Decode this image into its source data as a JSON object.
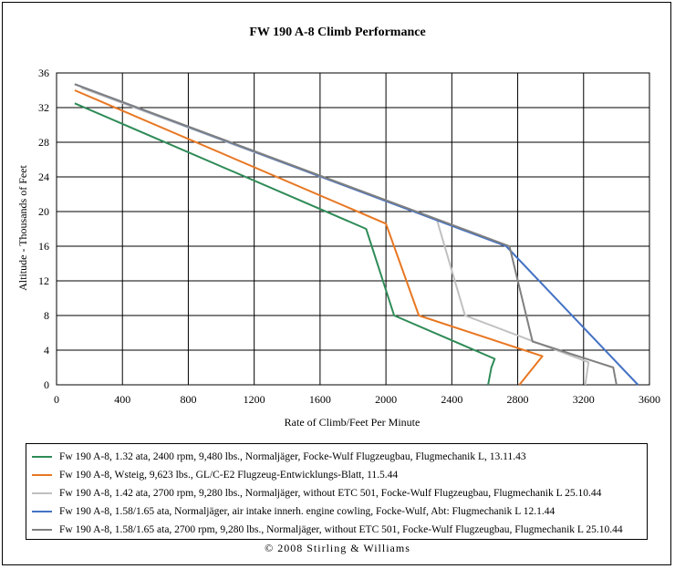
{
  "chart_data": {
    "type": "line",
    "title": "FW 190 A-8 Climb Performance",
    "xlabel": "Rate of Climb/Feet Per Minute",
    "ylabel": "Altitude - Thousands of Feet",
    "xlim": [
      0,
      3600
    ],
    "ylim": [
      0,
      36
    ],
    "xticks": [
      "0",
      "400",
      "800",
      "1200",
      "1600",
      "2000",
      "2400",
      "2800",
      "3200",
      "3600"
    ],
    "yticks": [
      "0",
      "4",
      "8",
      "12",
      "16",
      "20",
      "24",
      "28",
      "32",
      "36"
    ],
    "grid": true,
    "legend_position": "bottom",
    "series": [
      {
        "name": "Fw 190 A-8, 1.32 ata, 2400 rpm, 9,480 lbs., Normaljäger, Focke-Wulf Flugzeugbau, Flugmechanik L, 13.11.43",
        "color": "#2e8b57",
        "x": [
          2620,
          2640,
          2660,
          2050,
          1880,
          110
        ],
        "y": [
          0,
          2,
          3,
          8,
          18,
          32.5
        ]
      },
      {
        "name": "Fw 190 A-8, Wsteig, 9,623 lbs., GL/C-E2 Flugzeug-Entwicklungs-Blatt, 11.5.44",
        "color": "#e87722",
        "x": [
          2810,
          2950,
          2200,
          2000,
          110
        ],
        "y": [
          0,
          3.3,
          8,
          18.6,
          34
        ]
      },
      {
        "name": "Fw 190 A-8, 1.42 ata, 2700 rpm, 9,280 lbs., Normaljäger, without ETC 501, Focke-Wulf Flugzeugbau, Flugmechanik L 25.10.44",
        "color": "#c0c0c0",
        "x": [
          3210,
          3230,
          2480,
          2310,
          150
        ],
        "y": [
          0,
          2.6,
          8,
          19,
          34.3
        ]
      },
      {
        "name": "Fw 190 A-8, 1.58/1.65 ata, Normaljäger, air intake innerh. engine cowling, Focke-Wulf, Abt: Flugmechanik L 12.1.44",
        "color": "#4472c4",
        "x": [
          3530,
          2730,
          110
        ],
        "y": [
          0,
          16,
          34.7
        ]
      },
      {
        "name": "Fw 190 A-8, 1.58/1.65 ata, 2700 rpm, 9,280 lbs., Normaljäger, without ETC 501, Focke-Wulf Flugzeugbau, Flugmechanik L 25.10.44",
        "color": "#808080",
        "x": [
          3400,
          3380,
          2890,
          2750,
          110
        ],
        "y": [
          0,
          2,
          5,
          16,
          34.7
        ]
      }
    ]
  },
  "copyright": "© 2008 Stirling & Williams"
}
